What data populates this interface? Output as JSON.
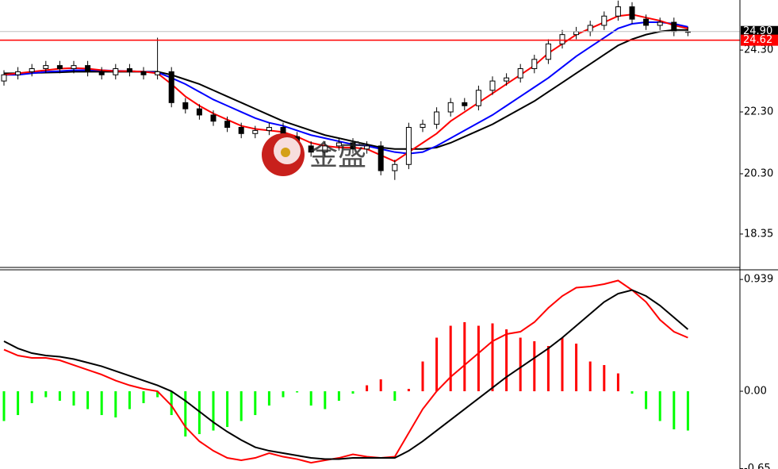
{
  "chart_data": [
    {
      "type": "candlestick",
      "watermark": "金盛",
      "open": [
        23.3,
        23.5,
        23.6,
        23.7,
        23.8,
        23.7,
        23.8,
        23.6,
        23.5,
        23.7,
        23.6,
        23.5,
        23.6,
        22.6,
        22.4,
        22.2,
        22.0,
        21.8,
        21.6,
        21.7,
        21.8,
        21.5,
        21.2,
        21.0,
        21.2,
        21.3,
        21.1,
        21.2,
        20.4,
        20.6,
        21.8,
        21.9,
        22.3,
        22.6,
        22.5,
        23.0,
        23.3,
        23.4,
        23.7,
        24.0,
        24.5,
        24.8,
        24.9,
        25.1,
        25.4,
        25.7,
        25.3,
        25.1,
        25.2,
        24.9
      ],
      "high": [
        23.65,
        23.75,
        23.85,
        23.95,
        23.95,
        23.95,
        23.95,
        23.75,
        23.85,
        23.85,
        23.75,
        24.7,
        23.75,
        22.75,
        22.55,
        22.35,
        22.15,
        21.95,
        21.85,
        21.95,
        21.95,
        21.65,
        21.35,
        21.35,
        21.45,
        21.45,
        21.35,
        21.35,
        20.75,
        21.95,
        22.05,
        22.45,
        22.75,
        22.75,
        23.15,
        23.45,
        23.55,
        23.85,
        24.15,
        24.65,
        24.95,
        25.05,
        25.25,
        25.55,
        25.9,
        25.85,
        25.45,
        25.35,
        25.35,
        25.05
      ],
      "low": [
        23.15,
        23.35,
        23.45,
        23.55,
        23.55,
        23.55,
        23.45,
        23.35,
        23.35,
        23.45,
        23.35,
        23.35,
        22.45,
        22.25,
        22.05,
        21.85,
        21.65,
        21.45,
        21.45,
        21.55,
        21.35,
        21.05,
        20.85,
        20.85,
        21.05,
        20.95,
        20.95,
        20.25,
        20.1,
        20.45,
        21.65,
        21.75,
        22.15,
        22.35,
        22.35,
        22.85,
        23.15,
        23.25,
        23.55,
        23.85,
        24.35,
        24.65,
        24.75,
        24.95,
        25.25,
        25.15,
        24.95,
        24.95,
        24.75,
        24.75
      ],
      "close": [
        23.5,
        23.6,
        23.7,
        23.8,
        23.7,
        23.8,
        23.6,
        23.5,
        23.7,
        23.6,
        23.5,
        23.6,
        22.6,
        22.4,
        22.2,
        22.0,
        21.8,
        21.6,
        21.7,
        21.8,
        21.5,
        21.2,
        21.0,
        21.2,
        21.3,
        21.1,
        21.2,
        20.4,
        20.6,
        21.8,
        21.9,
        22.3,
        22.6,
        22.5,
        23.0,
        23.3,
        23.4,
        23.7,
        24.0,
        24.5,
        24.8,
        24.9,
        25.1,
        25.4,
        25.7,
        25.3,
        25.1,
        25.2,
        24.9,
        24.9
      ],
      "up_color": "#ffffff",
      "down_color": "#000000",
      "lines": [
        {
          "color": "#000000",
          "values": [
            23.55,
            23.55,
            23.56,
            23.57,
            23.58,
            23.6,
            23.6,
            23.6,
            23.6,
            23.6,
            23.6,
            23.6,
            23.5,
            23.35,
            23.2,
            23.0,
            22.8,
            22.6,
            22.4,
            22.2,
            22.0,
            21.85,
            21.7,
            21.55,
            21.45,
            21.35,
            21.25,
            21.15,
            21.1,
            21.1,
            21.1,
            21.15,
            21.3,
            21.5,
            21.7,
            21.9,
            22.15,
            22.4,
            22.65,
            22.95,
            23.25,
            23.55,
            23.85,
            24.15,
            24.45,
            24.65,
            24.8,
            24.9,
            24.95,
            24.95
          ]
        },
        {
          "color": "#0000ff",
          "values": [
            23.5,
            23.5,
            23.55,
            23.6,
            23.62,
            23.65,
            23.65,
            23.65,
            23.63,
            23.62,
            23.6,
            23.58,
            23.4,
            23.2,
            22.95,
            22.7,
            22.5,
            22.3,
            22.1,
            21.95,
            21.85,
            21.7,
            21.55,
            21.45,
            21.35,
            21.25,
            21.2,
            21.1,
            21.0,
            20.95,
            21.0,
            21.2,
            21.45,
            21.7,
            21.95,
            22.2,
            22.5,
            22.8,
            23.1,
            23.4,
            23.75,
            24.1,
            24.4,
            24.7,
            25.0,
            25.15,
            25.2,
            25.2,
            25.15,
            25.05
          ]
        },
        {
          "color": "#ff0000",
          "values": [
            23.5,
            23.55,
            23.6,
            23.65,
            23.7,
            23.72,
            23.7,
            23.65,
            23.62,
            23.62,
            23.6,
            23.55,
            23.2,
            22.8,
            22.5,
            22.25,
            22.05,
            21.85,
            21.75,
            21.7,
            21.65,
            21.5,
            21.3,
            21.2,
            21.15,
            21.15,
            21.1,
            20.9,
            20.7,
            21.0,
            21.3,
            21.6,
            22.0,
            22.3,
            22.6,
            22.9,
            23.2,
            23.5,
            23.8,
            24.2,
            24.5,
            24.8,
            25.0,
            25.2,
            25.4,
            25.45,
            25.35,
            25.25,
            25.1,
            25.0
          ]
        }
      ],
      "price_lines": [
        {
          "value": 24.9,
          "label": "24.90",
          "color": "#c0c0c0",
          "label_color": "#000000"
        },
        {
          "value": 24.62,
          "label": "24.62",
          "color": "#ff0000",
          "label_color": "#ff0000"
        }
      ],
      "ylim": [
        17.27,
        25.92
      ],
      "yticks": [
        {
          "value": 24.3,
          "label": "24.30"
        },
        {
          "value": 22.3,
          "label": "22.30"
        },
        {
          "value": 20.3,
          "label": "20.30"
        },
        18.35
      ]
    },
    {
      "type": "macd",
      "histogram": {
        "up_color": "#ff0000",
        "down_color": "#00ff00",
        "values": [
          -0.25,
          -0.2,
          -0.1,
          -0.05,
          -0.08,
          -0.12,
          -0.15,
          -0.2,
          -0.22,
          -0.15,
          -0.1,
          -0.05,
          -0.2,
          -0.38,
          -0.36,
          -0.33,
          -0.3,
          -0.25,
          -0.2,
          -0.12,
          -0.05,
          -0.01,
          -0.12,
          -0.15,
          -0.08,
          -0.02,
          0.05,
          0.1,
          -0.08,
          0.02,
          0.25,
          0.45,
          0.55,
          0.58,
          0.55,
          0.57,
          0.52,
          0.45,
          0.42,
          0.38,
          0.45,
          0.4,
          0.25,
          0.22,
          0.15,
          -0.02,
          -0.15,
          -0.25,
          -0.32,
          -0.33
        ]
      },
      "lines": [
        {
          "color": "#ff0000",
          "values": [
            0.35,
            0.3,
            0.28,
            0.28,
            0.26,
            0.22,
            0.18,
            0.14,
            0.09,
            0.05,
            0.02,
            0.0,
            -0.12,
            -0.3,
            -0.42,
            -0.5,
            -0.56,
            -0.58,
            -0.56,
            -0.52,
            -0.55,
            -0.57,
            -0.6,
            -0.58,
            -0.56,
            -0.53,
            -0.55,
            -0.56,
            -0.55,
            -0.35,
            -0.15,
            0.0,
            0.12,
            0.22,
            0.32,
            0.42,
            0.48,
            0.5,
            0.58,
            0.7,
            0.8,
            0.87,
            0.88,
            0.9,
            0.93,
            0.85,
            0.75,
            0.6,
            0.5,
            0.45
          ]
        },
        {
          "color": "#000000",
          "values": [
            0.42,
            0.36,
            0.32,
            0.3,
            0.29,
            0.27,
            0.24,
            0.21,
            0.17,
            0.13,
            0.09,
            0.05,
            0.0,
            -0.08,
            -0.17,
            -0.26,
            -0.34,
            -0.41,
            -0.47,
            -0.5,
            -0.52,
            -0.54,
            -0.56,
            -0.57,
            -0.57,
            -0.56,
            -0.56,
            -0.56,
            -0.56,
            -0.5,
            -0.42,
            -0.33,
            -0.24,
            -0.15,
            -0.06,
            0.03,
            0.12,
            0.2,
            0.28,
            0.36,
            0.45,
            0.55,
            0.65,
            0.75,
            0.82,
            0.85,
            0.8,
            0.72,
            0.62,
            0.52
          ]
        }
      ],
      "ylim": [
        -0.653,
        1.02
      ],
      "yticks": [
        0.939,
        {
          "value": 0,
          "label": "0.00"
        },
        -0.65
      ]
    }
  ]
}
